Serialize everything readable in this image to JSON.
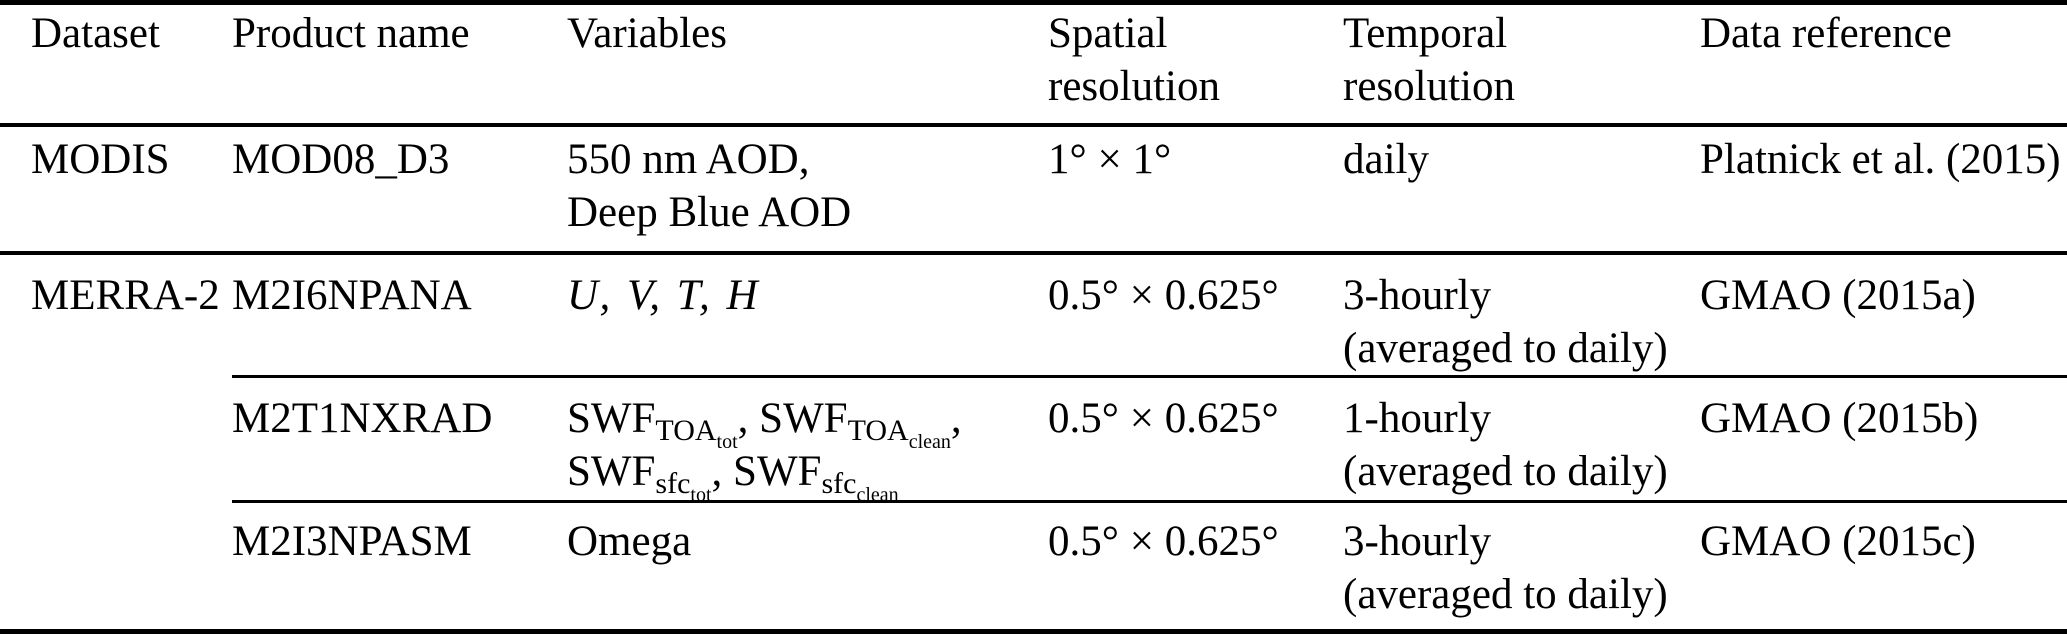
{
  "colors": {
    "background": "#ffffff",
    "text": "#000000",
    "rule": "#000000"
  },
  "header": {
    "columns": [
      "Dataset",
      "Product name",
      "Variables",
      "Spatial\nresolution",
      "Temporal\nresolution",
      "Data reference"
    ]
  },
  "rows": [
    {
      "dataset": {
        "label": "MODIS",
        "rowspan": 1
      },
      "product": "MOD08_D3",
      "variables": [
        [
          {
            "t": "550 nm AOD,"
          }
        ],
        [
          {
            "t": "Deep Blue AOD"
          }
        ]
      ],
      "spatial": "1° × 1°",
      "temporal": [
        "daily"
      ],
      "reference": "Platnick et al. (2015)",
      "rule_below": "full"
    },
    {
      "dataset": {
        "label": "MERRA-2",
        "rowspan": 3
      },
      "product": "M2I6NPANA",
      "variables": [
        [
          {
            "t": "U, V, T, H",
            "s": "i"
          }
        ]
      ],
      "spatial": "0.5° × 0.625°",
      "temporal": [
        "3-hourly",
        "(averaged to daily)"
      ],
      "reference": "GMAO (2015a)",
      "rule_below": "partial"
    },
    {
      "product": "M2T1NXRAD",
      "variables": [
        [
          {
            "t": "SWF"
          },
          {
            "t": "TOA",
            "s": "sub"
          },
          {
            "t": "tot",
            "s": "ssub"
          },
          {
            "t": ", "
          },
          {
            "t": "SWF"
          },
          {
            "t": "TOA",
            "s": "sub"
          },
          {
            "t": "clean",
            "s": "ssub"
          },
          {
            "t": ","
          }
        ],
        [
          {
            "t": "SWF"
          },
          {
            "t": "sfc",
            "s": "sub"
          },
          {
            "t": "tot",
            "s": "ssub"
          },
          {
            "t": ", "
          },
          {
            "t": "SWF"
          },
          {
            "t": "sfc",
            "s": "sub"
          },
          {
            "t": "clean",
            "s": "ssub"
          }
        ]
      ],
      "spatial": "0.5° × 0.625°",
      "temporal": [
        "1-hourly",
        "(averaged to daily)"
      ],
      "reference": "GMAO (2015b)",
      "rule_below": "partial"
    },
    {
      "product": "M2I3NPASM",
      "variables": [
        [
          {
            "t": "Omega"
          }
        ]
      ],
      "spatial": "0.5° × 0.625°",
      "temporal": [
        "3-hourly",
        "(averaged to daily)"
      ],
      "reference": "GMAO (2015c)",
      "rule_below": "none"
    }
  ]
}
